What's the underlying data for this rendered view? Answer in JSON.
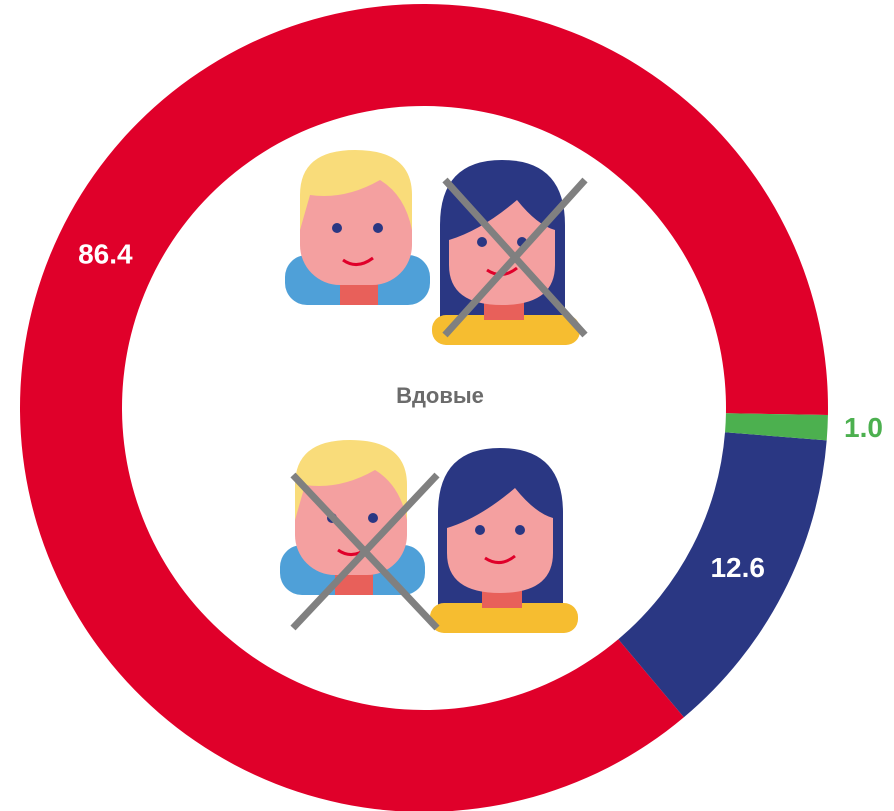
{
  "chart_data": {
    "type": "pie",
    "center_label": "Вдовые",
    "values": [
      86.4,
      12.6,
      1.0
    ],
    "value_labels": [
      "86.4",
      "12.6",
      "1.0"
    ],
    "colors": [
      "#e0002a",
      "#2a3783",
      "#4cb04f"
    ]
  }
}
